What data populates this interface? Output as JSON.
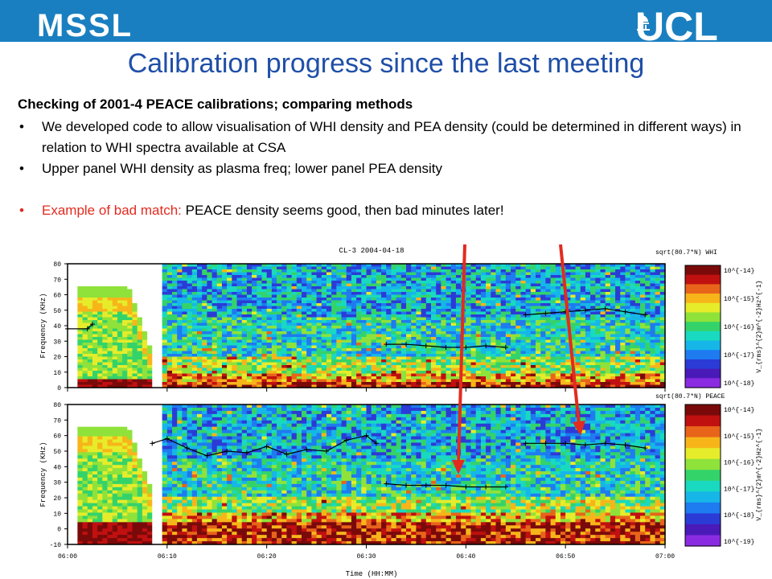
{
  "header": {
    "left_logo": "MSSL",
    "right_logo": "UCL",
    "banner_color": "#1a7fc0"
  },
  "title": "Calibration progress since the last meeting",
  "subtitle": "Checking of 2001-4 PEACE calibrations; comparing methods",
  "bullets": [
    "We developed code to allow visualisation of WHI density and PEA density (could be determined in different ways) in relation to WHI spectra available at CSA",
    "Upper panel WHI density as plasma freq; lower panel PEA density"
  ],
  "highlight": {
    "red_part": "Example of bad match:",
    "black_part": "PEACE density seems good, then bad minutes later!"
  },
  "chart_data": {
    "type": "heatmap",
    "title": "CL-3 2004-04-18",
    "xlabel": "Time (HH:MM)",
    "x_ticks": [
      "06:00",
      "06:10",
      "06:20",
      "06:30",
      "06:40",
      "06:50",
      "07:00"
    ],
    "panels": [
      {
        "name": "sqrt(80.7*N) WHI",
        "ylabel": "Frequency (KHz)",
        "ylim": [
          0,
          80
        ],
        "y_ticks": [
          "80",
          "70",
          "60",
          "50",
          "40",
          "30",
          "20",
          "10",
          "0"
        ],
        "colorbar_ticks": [
          "10^{-14}",
          "10^{-15}",
          "10^{-16}",
          "10^{-17}",
          "10^{-18}"
        ],
        "colorbar_label": "V_{rms}^{2}m^{-2}Hz^{-1}",
        "density_trace": [
          {
            "t": 0,
            "f": 38
          },
          {
            "t": 2,
            "f": 38
          },
          {
            "t": 2.5,
            "f": 41
          },
          {
            "t": 32,
            "f": 28
          },
          {
            "t": 34,
            "f": 28
          },
          {
            "t": 36,
            "f": 27
          },
          {
            "t": 38,
            "f": 26
          },
          {
            "t": 40,
            "f": 26
          },
          {
            "t": 42,
            "f": 27
          },
          {
            "t": 44,
            "f": 26
          },
          {
            "t": 46,
            "f": 47
          },
          {
            "t": 48,
            "f": 48
          },
          {
            "t": 50,
            "f": 49
          },
          {
            "t": 52,
            "f": 50
          },
          {
            "t": 54,
            "f": 51
          },
          {
            "t": 56,
            "f": 49
          },
          {
            "t": 58,
            "f": 47
          }
        ]
      },
      {
        "name": "sqrt(80.7*N) PEACE",
        "ylabel": "Frequency (KHz)",
        "ylim": [
          -10,
          80
        ],
        "y_ticks": [
          "80",
          "70",
          "60",
          "50",
          "40",
          "30",
          "20",
          "10",
          "0",
          "-10"
        ],
        "colorbar_ticks": [
          "10^{-14}",
          "10^{-15}",
          "10^{-16}",
          "10^{-17}",
          "10^{-18}",
          "10^{-19}"
        ],
        "colorbar_label": "V_{rms}^{2}m^{-2}Hz^{-1}",
        "density_trace": [
          {
            "t": 8.5,
            "f": 55
          },
          {
            "t": 10,
            "f": 58
          },
          {
            "t": 12,
            "f": 52
          },
          {
            "t": 14,
            "f": 47
          },
          {
            "t": 16,
            "f": 50
          },
          {
            "t": 18,
            "f": 49
          },
          {
            "t": 20,
            "f": 53
          },
          {
            "t": 22,
            "f": 48
          },
          {
            "t": 24,
            "f": 51
          },
          {
            "t": 26,
            "f": 50
          },
          {
            "t": 28,
            "f": 57
          },
          {
            "t": 30,
            "f": 60
          },
          {
            "t": 31,
            "f": 55
          },
          {
            "t": 32,
            "f": 29
          },
          {
            "t": 34,
            "f": 28
          },
          {
            "t": 36,
            "f": 28
          },
          {
            "t": 38,
            "f": 28
          },
          {
            "t": 40,
            "f": 27
          },
          {
            "t": 42,
            "f": 27
          },
          {
            "t": 44,
            "f": 27
          },
          {
            "t": 46,
            "f": 55
          },
          {
            "t": 48,
            "f": 55
          },
          {
            "t": 50,
            "f": 55
          },
          {
            "t": 52,
            "f": 54
          },
          {
            "t": 54,
            "f": 55
          },
          {
            "t": 56,
            "f": 54
          },
          {
            "t": 58,
            "f": 52
          }
        ]
      }
    ],
    "annotations": [
      {
        "type": "arrow",
        "color": "#e32b1f",
        "points_to": "PEACE density near 06:39"
      },
      {
        "type": "arrow",
        "color": "#e32b1f",
        "points_to": "PEACE density near 06:51"
      }
    ]
  }
}
